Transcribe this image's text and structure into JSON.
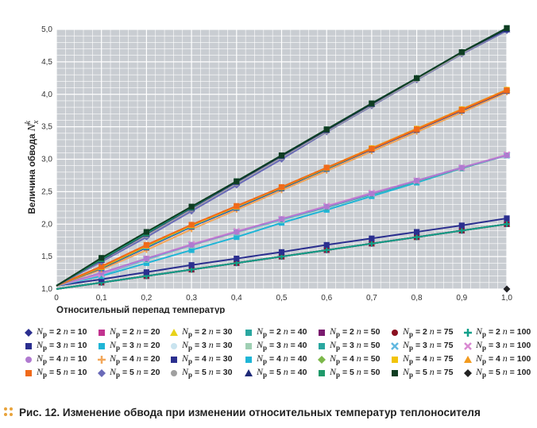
{
  "chart_data": {
    "type": "line",
    "ylabel_text": "Величина обвода",
    "ylabel_symbol": "N",
    "ylabel_sub": "x",
    "ylabel_sup": "k",
    "xlabel": "Относительный перепад температур",
    "xlim": [
      0,
      1.0
    ],
    "ylim": [
      1.0,
      5.0
    ],
    "x_ticks": [
      "0",
      "0,1",
      "0,2",
      "0,3",
      "0,4",
      "0,5",
      "0,6",
      "0,7",
      "0,8",
      "0,9",
      "1,0"
    ],
    "y_ticks": [
      "1,0",
      "1,5",
      "2,0",
      "2,5",
      "3,0",
      "3,5",
      "4,0",
      "4,5",
      "5,0"
    ],
    "grid": true,
    "x": [
      0,
      0.1,
      0.2,
      0.3,
      0.4,
      0.5,
      0.6,
      0.7,
      0.8,
      0.9,
      1.0
    ],
    "series": [
      {
        "name": "Np = 2 n = 10",
        "color": "#2b2f8f",
        "marker": "diamond",
        "values": [
          1.0,
          1.1,
          1.2,
          1.3,
          1.4,
          1.5,
          1.6,
          1.7,
          1.8,
          1.9,
          1.0
        ]
      },
      {
        "name": "Np = 2 n = 20",
        "color": "#c2338f",
        "marker": "square",
        "values": [
          1.0,
          1.1,
          1.2,
          1.3,
          1.4,
          1.5,
          1.6,
          1.7,
          1.8,
          1.9,
          2.0
        ]
      },
      {
        "name": "Np = 2 n = 30",
        "color": "#e8d21a",
        "marker": "triangle",
        "values": [
          1.0,
          1.1,
          1.2,
          1.3,
          1.4,
          1.5,
          1.6,
          1.7,
          1.8,
          1.9,
          2.0
        ]
      },
      {
        "name": "Np = 2 n = 40",
        "color": "#2aa7a0",
        "marker": "square",
        "values": [
          1.0,
          1.1,
          1.2,
          1.3,
          1.4,
          1.5,
          1.6,
          1.7,
          1.8,
          1.9,
          2.0
        ]
      },
      {
        "name": "Np = 2 n = 50",
        "color": "#7a1a6e",
        "marker": "square",
        "values": [
          1.0,
          1.1,
          1.2,
          1.3,
          1.4,
          1.5,
          1.6,
          1.7,
          1.8,
          1.9,
          2.0
        ]
      },
      {
        "name": "Np = 2 n = 75",
        "color": "#8b1020",
        "marker": "circle",
        "values": [
          1.0,
          1.1,
          1.2,
          1.3,
          1.4,
          1.5,
          1.6,
          1.7,
          1.8,
          1.9,
          2.0
        ]
      },
      {
        "name": "Np = 2 n = 100",
        "color": "#12a08a",
        "marker": "plus",
        "values": [
          1.0,
          1.1,
          1.2,
          1.3,
          1.4,
          1.5,
          1.6,
          1.7,
          1.8,
          1.9,
          2.0
        ]
      },
      {
        "name": "Np = 3 n = 10",
        "color": "#2b2f8f",
        "marker": "square",
        "values": [
          1.05,
          1.15,
          1.26,
          1.37,
          1.47,
          1.57,
          1.68,
          1.78,
          1.88,
          1.98,
          2.09
        ]
      },
      {
        "name": "Np = 3 n = 20",
        "color": "#1fb5d6",
        "marker": "square",
        "values": [
          1.05,
          1.2,
          1.4,
          1.6,
          1.8,
          2.02,
          2.22,
          2.43,
          2.64,
          2.86,
          3.06
        ]
      },
      {
        "name": "Np = 3 n = 30",
        "color": "#c9e4ef",
        "marker": "circle",
        "values": [
          1.05,
          1.22,
          1.45,
          1.67,
          1.87,
          2.06,
          2.26,
          2.46,
          2.66,
          2.86,
          3.06
        ]
      },
      {
        "name": "Np = 3 n = 40",
        "color": "#9fcfb3",
        "marker": "square",
        "values": [
          1.05,
          1.22,
          1.45,
          1.67,
          1.87,
          2.06,
          2.26,
          2.46,
          2.66,
          2.86,
          3.06
        ]
      },
      {
        "name": "Np = 3 n = 50",
        "color": "#2aa7a0",
        "marker": "square",
        "values": [
          1.05,
          1.22,
          1.46,
          1.68,
          1.88,
          2.07,
          2.26,
          2.46,
          2.66,
          2.86,
          3.06
        ]
      },
      {
        "name": "Np = 3 n = 75",
        "color": "#62b8e0",
        "marker": "x",
        "values": [
          1.05,
          1.22,
          1.46,
          1.68,
          1.88,
          2.07,
          2.27,
          2.47,
          2.67,
          2.87,
          3.06
        ]
      },
      {
        "name": "Np = 3 n = 100",
        "color": "#d98ad2",
        "marker": "x",
        "values": [
          1.05,
          1.23,
          1.47,
          1.69,
          1.89,
          2.08,
          2.28,
          2.48,
          2.67,
          2.87,
          3.07
        ]
      },
      {
        "name": "Np = 4 n = 10",
        "color": "#b07ad0",
        "marker": "circle",
        "values": [
          1.05,
          1.25,
          1.47,
          1.68,
          1.88,
          2.08,
          2.27,
          2.47,
          2.67,
          2.87,
          3.06
        ]
      },
      {
        "name": "Np = 4 n = 20",
        "color": "#f2a75a",
        "marker": "plus",
        "values": [
          1.05,
          1.3,
          1.6,
          1.92,
          2.22,
          2.52,
          2.82,
          3.12,
          3.42,
          3.72,
          4.03
        ]
      },
      {
        "name": "Np = 4 n = 30",
        "color": "#2b2f8f",
        "marker": "square",
        "values": [
          1.05,
          1.32,
          1.64,
          1.96,
          2.25,
          2.55,
          2.85,
          3.15,
          3.45,
          3.75,
          4.05
        ]
      },
      {
        "name": "Np = 4 n = 40",
        "color": "#1fb5d6",
        "marker": "square",
        "values": [
          1.05,
          1.33,
          1.65,
          1.97,
          2.26,
          2.56,
          2.86,
          3.16,
          3.46,
          3.76,
          4.06
        ]
      },
      {
        "name": "Np = 4 n = 50",
        "color": "#7cb84a",
        "marker": "diamond",
        "values": [
          1.05,
          1.33,
          1.66,
          1.98,
          2.27,
          2.56,
          2.86,
          3.16,
          3.46,
          3.76,
          4.06
        ]
      },
      {
        "name": "Np = 4 n = 75",
        "color": "#f2c40a",
        "marker": "square",
        "values": [
          1.05,
          1.34,
          1.67,
          1.98,
          2.27,
          2.57,
          2.87,
          3.17,
          3.47,
          3.77,
          4.07
        ]
      },
      {
        "name": "Np = 4 n = 100",
        "color": "#f29a1e",
        "marker": "triangle",
        "values": [
          1.05,
          1.34,
          1.67,
          1.99,
          2.27,
          2.57,
          2.87,
          3.17,
          3.47,
          3.77,
          4.07
        ]
      },
      {
        "name": "Np = 5 n = 10",
        "color": "#f06a1a",
        "marker": "square",
        "values": [
          1.05,
          1.35,
          1.68,
          1.99,
          2.28,
          2.57,
          2.87,
          3.16,
          3.46,
          3.76,
          4.06
        ]
      },
      {
        "name": "Np = 5 n = 20",
        "color": "#6a6ab8",
        "marker": "diamond",
        "values": [
          1.05,
          1.42,
          1.8,
          2.2,
          2.6,
          3.0,
          3.42,
          3.82,
          4.22,
          4.62,
          4.98
        ]
      },
      {
        "name": "Np = 5 n = 30",
        "color": "#a0a0a0",
        "marker": "circle",
        "values": [
          1.05,
          1.44,
          1.83,
          2.23,
          2.63,
          3.03,
          3.43,
          3.83,
          4.23,
          4.63,
          5.0
        ]
      },
      {
        "name": "Np = 5 n = 40",
        "color": "#1e2a78",
        "marker": "triangle",
        "values": [
          1.05,
          1.45,
          1.85,
          2.25,
          2.65,
          3.05,
          3.45,
          3.85,
          4.25,
          4.65,
          5.0
        ]
      },
      {
        "name": "Np = 5 n = 50",
        "color": "#1f9a6a",
        "marker": "square",
        "values": [
          1.05,
          1.46,
          1.86,
          2.26,
          2.66,
          3.06,
          3.46,
          3.86,
          4.25,
          4.65,
          5.02
        ]
      },
      {
        "name": "Np = 5 n = 75",
        "color": "#0f3d22",
        "marker": "square",
        "values": [
          1.05,
          1.48,
          1.88,
          2.27,
          2.66,
          3.06,
          3.46,
          3.86,
          4.25,
          4.65,
          5.02
        ]
      },
      {
        "name": "Np = 5 n = 100",
        "color": "#222222",
        "marker": "diamond",
        "values": [
          1.05,
          null,
          null,
          null,
          null,
          null,
          null,
          null,
          null,
          null,
          1.0
        ]
      }
    ]
  },
  "legend": [
    {
      "np": "2",
      "n": "10"
    },
    {
      "np": "2",
      "n": "20"
    },
    {
      "np": "2",
      "n": "30"
    },
    {
      "np": "2",
      "n": "40"
    },
    {
      "np": "2",
      "n": "50"
    },
    {
      "np": "2",
      "n": "75"
    },
    {
      "np": "2",
      "n": "100"
    },
    {
      "np": "3",
      "n": "10"
    },
    {
      "np": "3",
      "n": "20"
    },
    {
      "np": "3",
      "n": "30"
    },
    {
      "np": "3",
      "n": "40"
    },
    {
      "np": "3",
      "n": "50"
    },
    {
      "np": "3",
      "n": "75"
    },
    {
      "np": "3",
      "n": "100"
    },
    {
      "np": "4",
      "n": "10"
    },
    {
      "np": "4",
      "n": "20"
    },
    {
      "np": "4",
      "n": "30"
    },
    {
      "np": "4",
      "n": "40"
    },
    {
      "np": "4",
      "n": "50"
    },
    {
      "np": "4",
      "n": "75"
    },
    {
      "np": "4",
      "n": "100"
    },
    {
      "np": "5",
      "n": "10"
    },
    {
      "np": "5",
      "n": "20"
    },
    {
      "np": "5",
      "n": "30"
    },
    {
      "np": "5",
      "n": "40"
    },
    {
      "np": "5",
      "n": "50"
    },
    {
      "np": "5",
      "n": "75"
    },
    {
      "np": "5",
      "n": "100"
    }
  ],
  "legend_labels": {
    "N": "N",
    "p": "p",
    "n": "n"
  },
  "caption": {
    "label": "Рис. 12.",
    "text": "Изменение обвода при изменении относительных температур теплоносителя",
    "dots_color": "#e8a33a"
  }
}
